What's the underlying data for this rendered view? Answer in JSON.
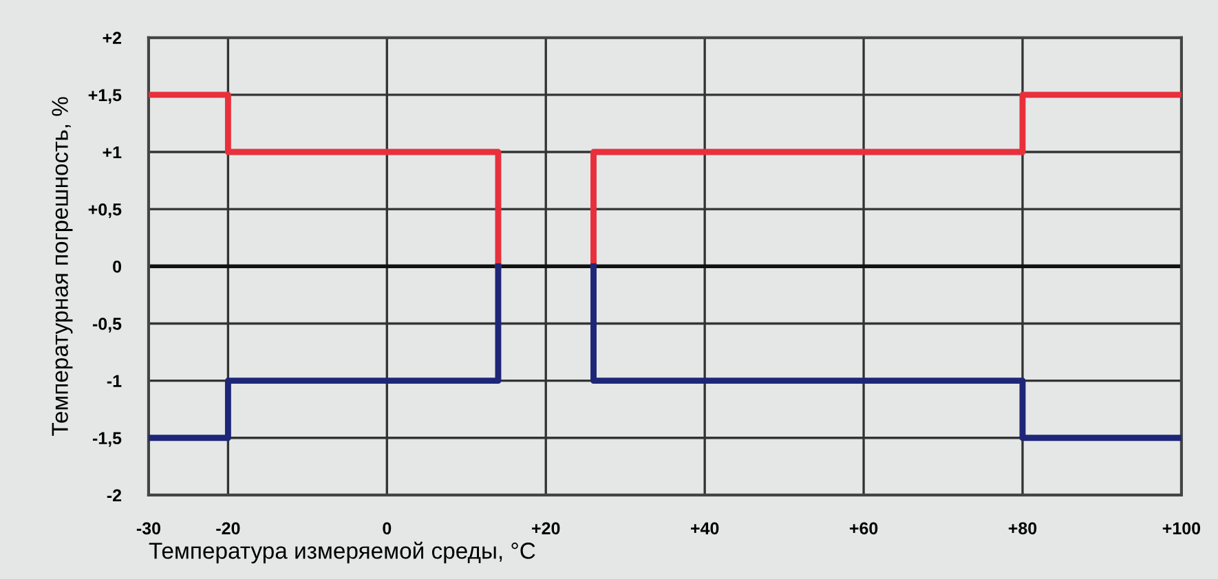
{
  "chart_data": {
    "type": "line",
    "xlabel": "Температура измеряемой среды, °C",
    "ylabel": "Температурная погрешность, %",
    "xlim": [
      -30,
      100
    ],
    "ylim": [
      -2,
      2
    ],
    "xticks": [
      -30,
      -20,
      0,
      {
        "value": 20,
        "label": "+20"
      },
      {
        "value": 40,
        "label": "+40"
      },
      {
        "value": 60,
        "label": "+60"
      },
      {
        "value": 80,
        "label": "+80"
      },
      {
        "value": 100,
        "label": "+100"
      }
    ],
    "yticks": [
      {
        "value": 2,
        "label": "+2"
      },
      {
        "value": 1.5,
        "label": "+1,5"
      },
      {
        "value": 1,
        "label": "+1"
      },
      {
        "value": 0.5,
        "label": "+0,5"
      },
      0,
      {
        "value": -0.5,
        "label": "-0,5"
      },
      {
        "value": -1,
        "label": "-1"
      },
      {
        "value": -1.5,
        "label": "-1,5"
      },
      {
        "value": -2,
        "label": "-2"
      }
    ],
    "grid": true,
    "marker": "none",
    "line_style": "solid",
    "ref_lines": [
      {
        "axis": "y",
        "value": 0,
        "color": "#111111"
      }
    ],
    "series": [
      {
        "color": "#e8303c",
        "x": [
          -30,
          -20,
          -20,
          14,
          14,
          null,
          26,
          26,
          80,
          80,
          100
        ],
        "values": [
          1.5,
          1.5,
          1,
          1,
          0,
          null,
          0,
          1,
          1,
          1.5,
          1.5
        ]
      },
      {
        "color": "#1e2678",
        "x": [
          -30,
          -20,
          -20,
          14,
          14,
          null,
          26,
          26,
          80,
          80,
          100
        ],
        "values": [
          -1.5,
          -1.5,
          -1,
          -1,
          0,
          null,
          0,
          -1,
          -1,
          -1.5,
          -1.5
        ]
      }
    ]
  }
}
